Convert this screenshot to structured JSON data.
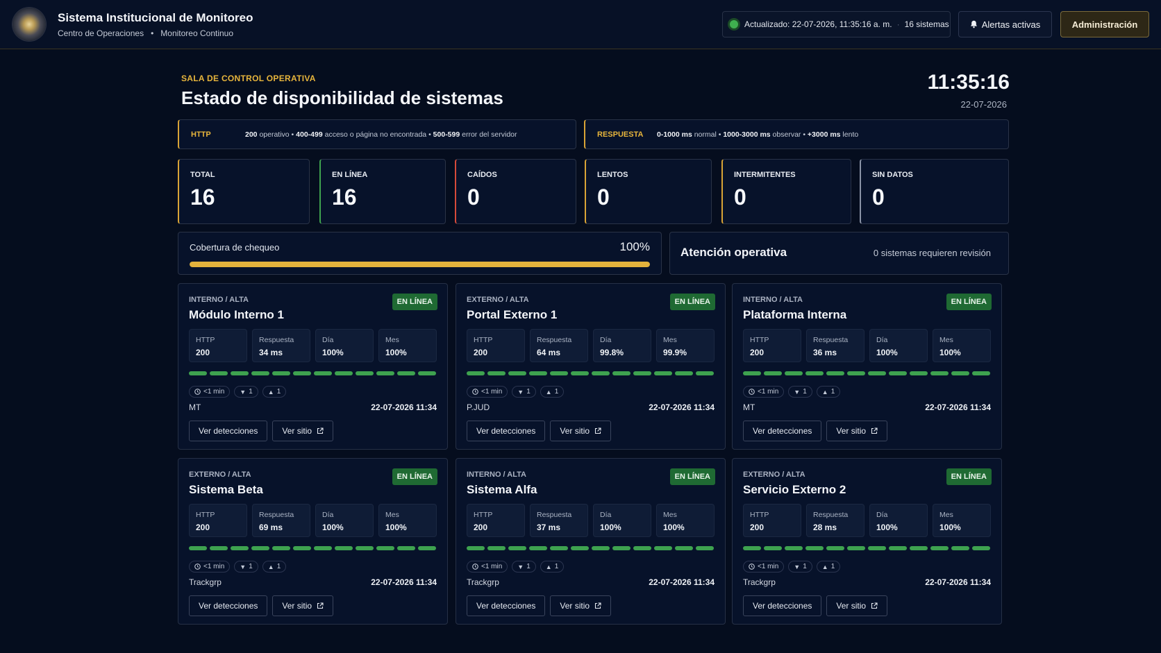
{
  "header": {
    "title": "Sistema Institucional de Monitoreo",
    "subtitle_left": "Centro de Operaciones",
    "subtitle_sep": "•",
    "subtitle_right": "Monitoreo Continuo",
    "status_text": "Actualizado: 22-07-2026, 11:35:16 a. m.",
    "status_sep": "·",
    "status_count": "16 sistemas",
    "alerts_button": "Alertas activas",
    "admin_button": "Administración"
  },
  "page": {
    "kicker": "SALA DE CONTROL OPERATIVA",
    "title": "Estado de disponibilidad de sistemas",
    "clock": "11:35:16",
    "date": "22-07-2026"
  },
  "legend_http": {
    "tag": "HTTP",
    "a_code": "200",
    "a_text": " operativo • ",
    "b_code": "400-499",
    "b_text": " acceso o página no encontrada • ",
    "c_code": "500-599",
    "c_text": " error del servidor"
  },
  "legend_resp": {
    "tag": "RESPUESTA",
    "a_code": "0-1000 ms",
    "a_text": " normal • ",
    "b_code": "1000-3000 ms",
    "b_text": " observar • ",
    "c_code": "+3000 ms",
    "c_text": " lento"
  },
  "stats": [
    {
      "label": "TOTAL",
      "value": "16",
      "color": "#d9a436"
    },
    {
      "label": "EN LÍNEA",
      "value": "16",
      "color": "#3fa34f"
    },
    {
      "label": "CAÍDOS",
      "value": "0",
      "color": "#d64a3a"
    },
    {
      "label": "LENTOS",
      "value": "0",
      "color": "#d9a436"
    },
    {
      "label": "INTERMITENTES",
      "value": "0",
      "color": "#d9a436"
    },
    {
      "label": "SIN DATOS",
      "value": "0",
      "color": "#8a93a6"
    }
  ],
  "coverage": {
    "label": "Cobertura de chequeo",
    "percent_text": "100%",
    "percent": 100
  },
  "attention": {
    "title": "Atención operativa",
    "summary": "0 sistemas requieren revisión"
  },
  "metric_labels": {
    "http": "HTTP",
    "resp": "Respuesta",
    "day": "Día",
    "month": "Mes"
  },
  "actions": {
    "detections": "Ver detecciones",
    "site": "Ver sitio"
  },
  "chip_values": {
    "interval": "<1 min",
    "down": "1",
    "up": "1"
  },
  "bar_color": "#3ea24f",
  "badge_color": "#1f6a33",
  "systems": [
    {
      "category": "INTERNO / ALTA",
      "name": "Módulo Interno 1",
      "status": "EN LÍNEA",
      "http": "200",
      "resp": "34 ms",
      "day": "100%",
      "month": "100%",
      "owner": "MT",
      "timestamp": "22-07-2026 11:34"
    },
    {
      "category": "EXTERNO / ALTA",
      "name": "Portal Externo 1",
      "status": "EN LÍNEA",
      "http": "200",
      "resp": "64 ms",
      "day": "99.8%",
      "month": "99.9%",
      "owner": "P.JUD",
      "timestamp": "22-07-2026 11:34"
    },
    {
      "category": "INTERNO / ALTA",
      "name": "Plataforma Interna",
      "status": "EN LÍNEA",
      "http": "200",
      "resp": "36 ms",
      "day": "100%",
      "month": "100%",
      "owner": "MT",
      "timestamp": "22-07-2026 11:34"
    },
    {
      "category": "EXTERNO / ALTA",
      "name": "Sistema Beta",
      "status": "EN LÍNEA",
      "http": "200",
      "resp": "69 ms",
      "day": "100%",
      "month": "100%",
      "owner": "Trackgrp",
      "timestamp": "22-07-2026 11:34"
    },
    {
      "category": "INTERNO / ALTA",
      "name": "Sistema Alfa",
      "status": "EN LÍNEA",
      "http": "200",
      "resp": "37 ms",
      "day": "100%",
      "month": "100%",
      "owner": "Trackgrp",
      "timestamp": "22-07-2026 11:34"
    },
    {
      "category": "EXTERNO / ALTA",
      "name": "Servicio Externo 2",
      "status": "EN LÍNEA",
      "http": "200",
      "resp": "28 ms",
      "day": "100%",
      "month": "100%",
      "owner": "Trackgrp",
      "timestamp": "22-07-2026 11:34"
    }
  ]
}
